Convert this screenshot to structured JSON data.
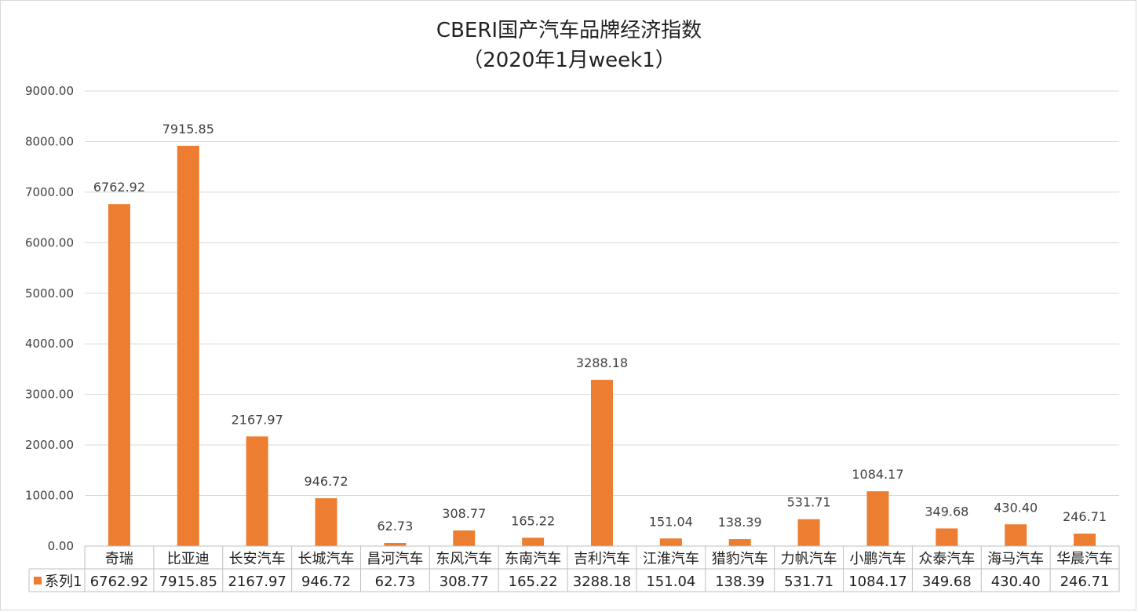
{
  "chart_data": {
    "type": "bar",
    "title": "CBERI国产汽车品牌经济指数",
    "subtitle": "（2020年1月week1）",
    "categories": [
      "奇瑞",
      "比亚迪",
      "长安汽车",
      "长城汽车",
      "昌河汽车",
      "东风汽车",
      "东南汽车",
      "吉利汽车",
      "江淮汽车",
      "猎豹汽车",
      "力帆汽车",
      "小鹏汽车",
      "众泰汽车",
      "海马汽车",
      "华晨汽车"
    ],
    "series": [
      {
        "name": "系列1",
        "color": "#ED7D31",
        "values": [
          6762.92,
          7915.85,
          2167.97,
          946.72,
          62.73,
          308.77,
          165.22,
          3288.18,
          151.04,
          138.39,
          531.71,
          1084.17,
          349.68,
          430.4,
          246.71
        ],
        "labels": [
          "6762.92",
          "7915.85",
          "2167.97",
          "946.72",
          "62.73",
          "308.77",
          "165.22",
          "3288.18",
          "151.04",
          "138.39",
          "531.71",
          "1084.17",
          "349.68",
          "430.40",
          "246.71"
        ]
      }
    ],
    "ylim": [
      0,
      9000
    ],
    "yticks": [
      "0.00",
      "1000.00",
      "2000.00",
      "3000.00",
      "4000.00",
      "5000.00",
      "6000.00",
      "7000.00",
      "8000.00",
      "9000.00"
    ],
    "grid": true,
    "data_table": true,
    "legend": "in data table"
  }
}
